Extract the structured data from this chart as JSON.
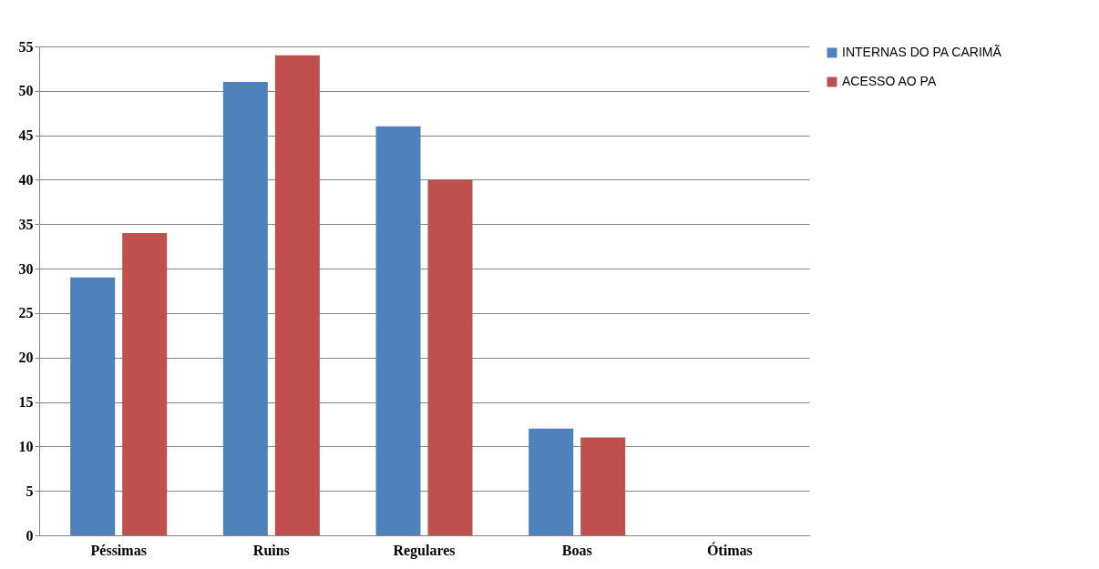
{
  "chart_data": {
    "type": "bar",
    "categories": [
      "Péssimas",
      "Ruins",
      "Regulares",
      "Boas",
      "Ótimas"
    ],
    "series": [
      {
        "name": "INTERNAS DO PA CARIMÃ",
        "color": "#4f81bd",
        "values": [
          29,
          51,
          46,
          12,
          0
        ]
      },
      {
        "name": "ACESSO AO PA",
        "color": "#c0504d",
        "values": [
          34,
          54,
          40,
          11,
          0
        ]
      }
    ],
    "ylim": [
      0,
      55
    ],
    "yticks": [
      0,
      5,
      10,
      15,
      20,
      25,
      30,
      35,
      40,
      45,
      50,
      55
    ],
    "grid": "y",
    "legend": "right"
  }
}
